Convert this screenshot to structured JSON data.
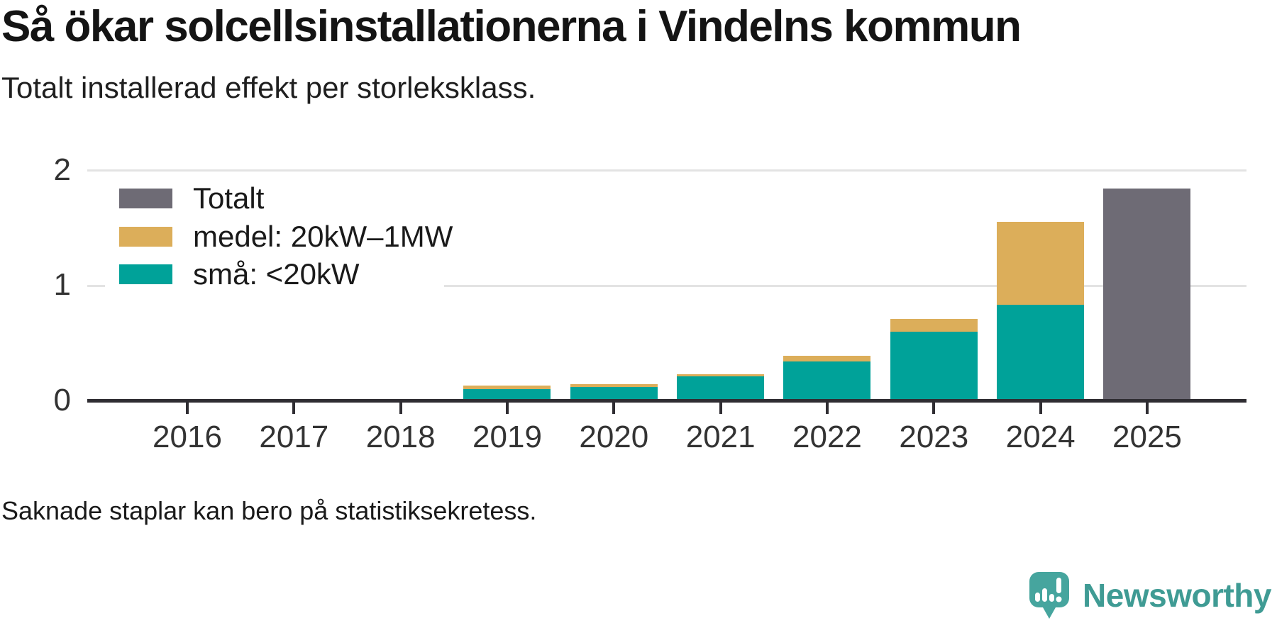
{
  "header": {
    "title": "Så ökar solcellsinstallationerna i Vindelns kommun",
    "subtitle": "Totalt installerad effekt per storleksklass."
  },
  "footer": {
    "note": "Saknade staplar kan bero på statistiksekretess.",
    "brand_name": "Newsworthy"
  },
  "colors": {
    "total": "#6e6b75",
    "medium": "#dcae5a",
    "small": "#00a299",
    "grid": "#e3e3e3",
    "axis": "#2f2d32",
    "brand_teal": "#3f9b94",
    "brand_bubble": "#46a59e"
  },
  "legend": {
    "items": [
      {
        "label": "Totalt",
        "color_key": "total"
      },
      {
        "label": "medel: 20kW–1MW",
        "color_key": "medium"
      },
      {
        "label": "små: <20kW",
        "color_key": "small"
      }
    ]
  },
  "chart_data": {
    "type": "bar",
    "stacked": true,
    "title": "Så ökar solcellsinstallationerna i Vindelns kommun",
    "subtitle": "Totalt installerad effekt per storleksklass.",
    "categories": [
      "2016",
      "2017",
      "2018",
      "2019",
      "2020",
      "2021",
      "2022",
      "2023",
      "2024",
      "2025"
    ],
    "series": [
      {
        "name": "små: <20kW",
        "color_key": "small",
        "values": [
          null,
          null,
          null,
          0.09,
          0.11,
          0.2,
          0.33,
          0.59,
          0.82,
          null
        ]
      },
      {
        "name": "medel: 20kW–1MW",
        "color_key": "medium",
        "values": [
          null,
          null,
          null,
          0.03,
          0.02,
          0.02,
          0.05,
          0.11,
          0.72,
          null
        ]
      },
      {
        "name": "Totalt",
        "color_key": "total",
        "values": [
          null,
          null,
          null,
          null,
          null,
          null,
          null,
          null,
          null,
          1.83
        ]
      }
    ],
    "ylim": [
      0,
      2
    ],
    "yticks": [
      0,
      1,
      2
    ],
    "grid": "horizontal",
    "legend_position": "upper-left",
    "note": "Missing bars for 2016–2018 (statistical confidentiality)"
  }
}
